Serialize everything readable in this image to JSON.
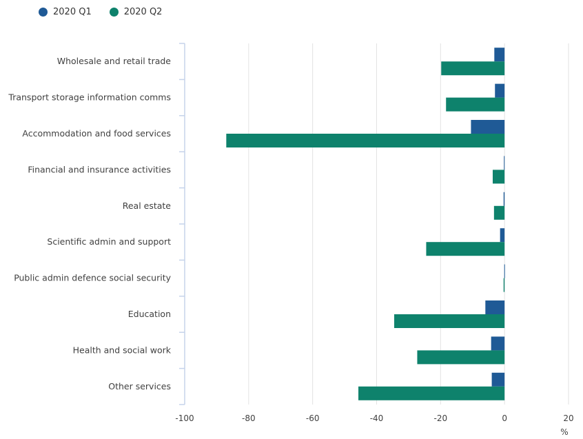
{
  "colors": {
    "q1": "#1f5a96",
    "q2": "#0e826c",
    "grid": "#e2e2e2",
    "axis": "#c5d3ea"
  },
  "chart_data": {
    "type": "bar",
    "orientation": "horizontal",
    "title": "",
    "xlabel": "%",
    "ylabel": "",
    "xlim": [
      -100,
      20
    ],
    "xticks": [
      -100,
      -80,
      -60,
      -40,
      -20,
      0,
      20
    ],
    "grid": true,
    "legend_position": "top-left",
    "categories": [
      "Wholesale and retail trade",
      "Transport storage information comms",
      "Accommodation and food services",
      "Financial and insurance activities",
      "Real estate",
      "Scientific admin and support",
      "Public admin defence social security",
      "Education",
      "Health and social work",
      "Other services"
    ],
    "series": [
      {
        "name": "2020 Q1",
        "values": [
          -3.2,
          -3.0,
          -10.5,
          -0.2,
          -0.3,
          -1.4,
          -0.1,
          -6.0,
          -4.2,
          -4.0
        ]
      },
      {
        "name": "2020 Q2",
        "values": [
          -19.8,
          -18.3,
          -87.0,
          -3.7,
          -3.3,
          -24.5,
          -0.3,
          -34.5,
          -27.3,
          -45.7
        ]
      }
    ]
  }
}
